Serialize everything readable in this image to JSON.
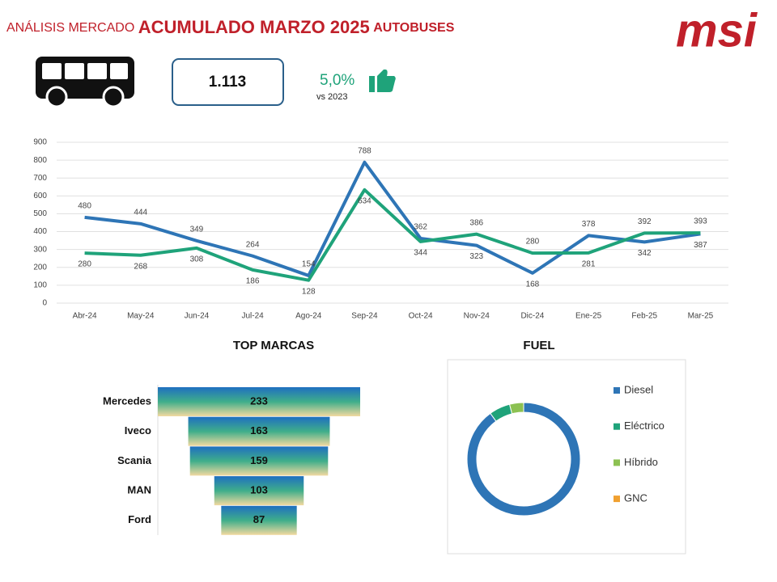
{
  "header": {
    "title_start": "ANÁLISIS MERCADO",
    "title_main": "ACUMULADO MARZO 2025",
    "title_end": "AUTOBUSES",
    "logo": "msi"
  },
  "kpi": {
    "value": "1.113",
    "change": "5,0%",
    "comparison": "vs 2023"
  },
  "chart_data": [
    {
      "type": "line",
      "categories": [
        "Abr-24",
        "May-24",
        "Jun-24",
        "Jul-24",
        "Ago-24",
        "Sep-24",
        "Oct-24",
        "Nov-24",
        "Dic-24",
        "Ene-25",
        "Feb-25",
        "Mar-25"
      ],
      "series": [
        {
          "color": "#2e75b6",
          "values": [
            480,
            444,
            349,
            264,
            154,
            788,
            362,
            323,
            168,
            378,
            342,
            387
          ]
        },
        {
          "color": "#1fa37a",
          "values": [
            280,
            268,
            308,
            186,
            128,
            634,
            344,
            386,
            280,
            281,
            392,
            393
          ]
        }
      ],
      "ylim": [
        0,
        900
      ],
      "yticks": [
        0,
        100,
        200,
        300,
        400,
        500,
        600,
        700,
        800,
        900
      ],
      "grid": true
    },
    {
      "type": "funnel",
      "title": "TOP MARCAS",
      "categories": [
        "Mercedes",
        "Iveco",
        "Scania",
        "MAN",
        "Ford"
      ],
      "values": [
        233,
        163,
        159,
        103,
        87
      ]
    },
    {
      "type": "donut",
      "title": "FUEL",
      "categories": [
        "Diesel",
        "Eléctrico",
        "Híbrido",
        "GNC"
      ],
      "values": [
        90,
        6,
        4,
        0
      ],
      "colors": [
        "#2e75b6",
        "#1fa37a",
        "#8cc152",
        "#f0a030"
      ]
    }
  ]
}
